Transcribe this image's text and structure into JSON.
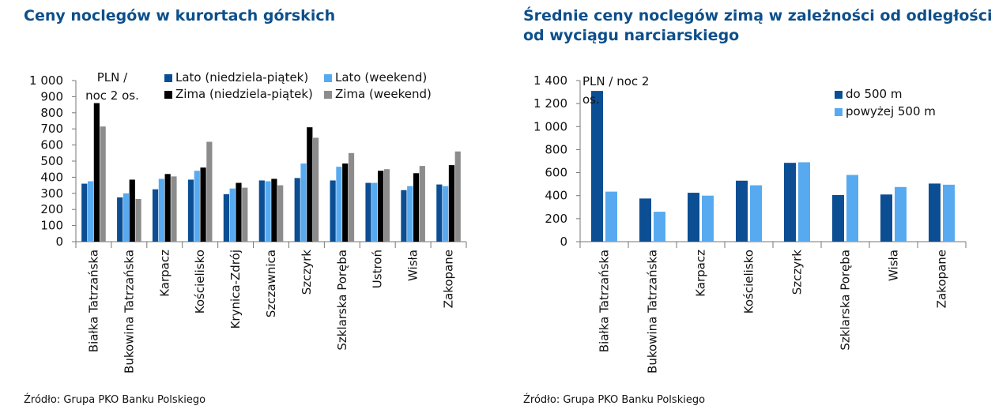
{
  "charts": [
    {
      "title": "Ceny noclegów w kurortach górskich",
      "source": "Źródło: Grupa PKO Banku Polskiego",
      "unit_label": [
        "PLN /",
        "noc 2 os."
      ],
      "y_tick_labels": [
        "0",
        "100",
        "200",
        "300",
        "400",
        "500",
        "600",
        "700",
        "800",
        "900",
        "1 000"
      ]
    },
    {
      "title": "Średnie ceny noclegów zimą w zależności od odległości od wyciągu narciarskiego",
      "source": "Źródło: Grupa PKO Banku Polskiego",
      "unit_label": [
        "PLN / noc 2",
        "os."
      ],
      "y_tick_labels": [
        "0",
        "200",
        "400",
        "600",
        "800",
        "1 000",
        "1 200",
        "1 400"
      ]
    }
  ],
  "chart_data": [
    {
      "type": "bar",
      "title": "Ceny noclegów w kurortach górskich",
      "ylim": [
        0,
        1000
      ],
      "grid": false,
      "legend_position": "top",
      "categories": [
        "Białka Tatrzańska",
        "Bukowina Tatrzańska",
        "Karpacz",
        "Kościelisko",
        "Krynica-Zdrój",
        "Szczawnica",
        "Szczyrk",
        "Szklarska Poręba",
        "Ustroń",
        "Wisła",
        "Zakopane"
      ],
      "series": [
        {
          "name": "Lato (niedziela-piątek)",
          "color": "#0b4e93",
          "values": [
            360,
            275,
            325,
            385,
            295,
            380,
            395,
            380,
            365,
            320,
            355
          ]
        },
        {
          "name": "Lato (weekend)",
          "color": "#58aaf0",
          "values": [
            375,
            300,
            390,
            440,
            330,
            375,
            485,
            465,
            365,
            345,
            345
          ]
        },
        {
          "name": "Zima (niedziela-piątek)",
          "color": "#000000",
          "values": [
            860,
            385,
            420,
            460,
            365,
            390,
            710,
            485,
            440,
            425,
            475
          ]
        },
        {
          "name": "Zima (weekend)",
          "color": "#8c8c8c",
          "values": [
            715,
            265,
            405,
            620,
            335,
            350,
            645,
            550,
            450,
            470,
            560
          ]
        }
      ]
    },
    {
      "type": "bar",
      "title": "Średnie ceny noclegów zimą w zależności od odległości od wyciągu narciarskiego",
      "ylim": [
        0,
        1400
      ],
      "grid": false,
      "legend_position": "top-right",
      "categories": [
        "Białka Tatrzańska",
        "Bukowina Tatrzańska",
        "Karpacz",
        "Kościelisko",
        "Szczyrk",
        "Szklarska Poręba",
        "Wisła",
        "Zakopane"
      ],
      "series": [
        {
          "name": "do 500 m",
          "color": "#0b4e93",
          "values": [
            1310,
            375,
            425,
            530,
            685,
            405,
            410,
            505
          ]
        },
        {
          "name": "powyżej 500 m",
          "color": "#58aaf0",
          "values": [
            435,
            260,
            400,
            490,
            690,
            580,
            475,
            495
          ]
        }
      ]
    }
  ]
}
